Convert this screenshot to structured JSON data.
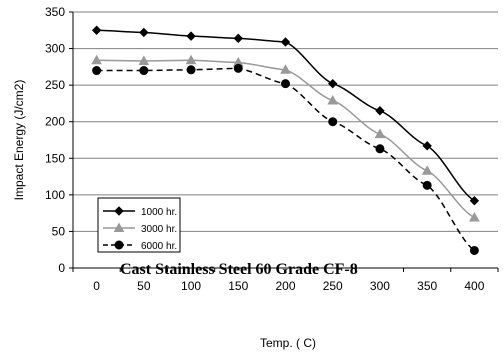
{
  "chart_data": {
    "type": "line",
    "title": "",
    "xlabel": "Temp. ( C)",
    "ylabel": "Impact Energy (J/cm2)",
    "x": [
      0,
      50,
      100,
      150,
      200,
      250,
      300,
      350,
      400
    ],
    "xlim": [
      -25,
      425
    ],
    "ylim": [
      0,
      350
    ],
    "x_ticks": [
      "0",
      "50",
      "100",
      "150",
      "200",
      "250",
      "300",
      "350",
      "400"
    ],
    "y_ticks": [
      "0",
      "50",
      "100",
      "150",
      "200",
      "250",
      "300",
      "350"
    ],
    "grid": "horizontal",
    "legend_position": "bottom-left",
    "annotation": "Cast Stainless Steel 60 Grade  CF-8",
    "series": [
      {
        "name": "1000 hr.",
        "values": [
          325,
          322,
          317,
          314,
          309,
          252,
          215,
          167,
          92
        ],
        "color": "#000000",
        "marker": "diamond",
        "dash": "solid"
      },
      {
        "name": "3000 hr.",
        "values": [
          284,
          283,
          284,
          281,
          271,
          229,
          183,
          133,
          69
        ],
        "color": "#999999",
        "marker": "triangle",
        "dash": "solid"
      },
      {
        "name": "6000 hr.",
        "values": [
          270,
          270,
          271,
          273,
          252,
          200,
          163,
          113,
          24
        ],
        "color": "#000000",
        "marker": "circle",
        "dash": "dashed"
      }
    ]
  }
}
